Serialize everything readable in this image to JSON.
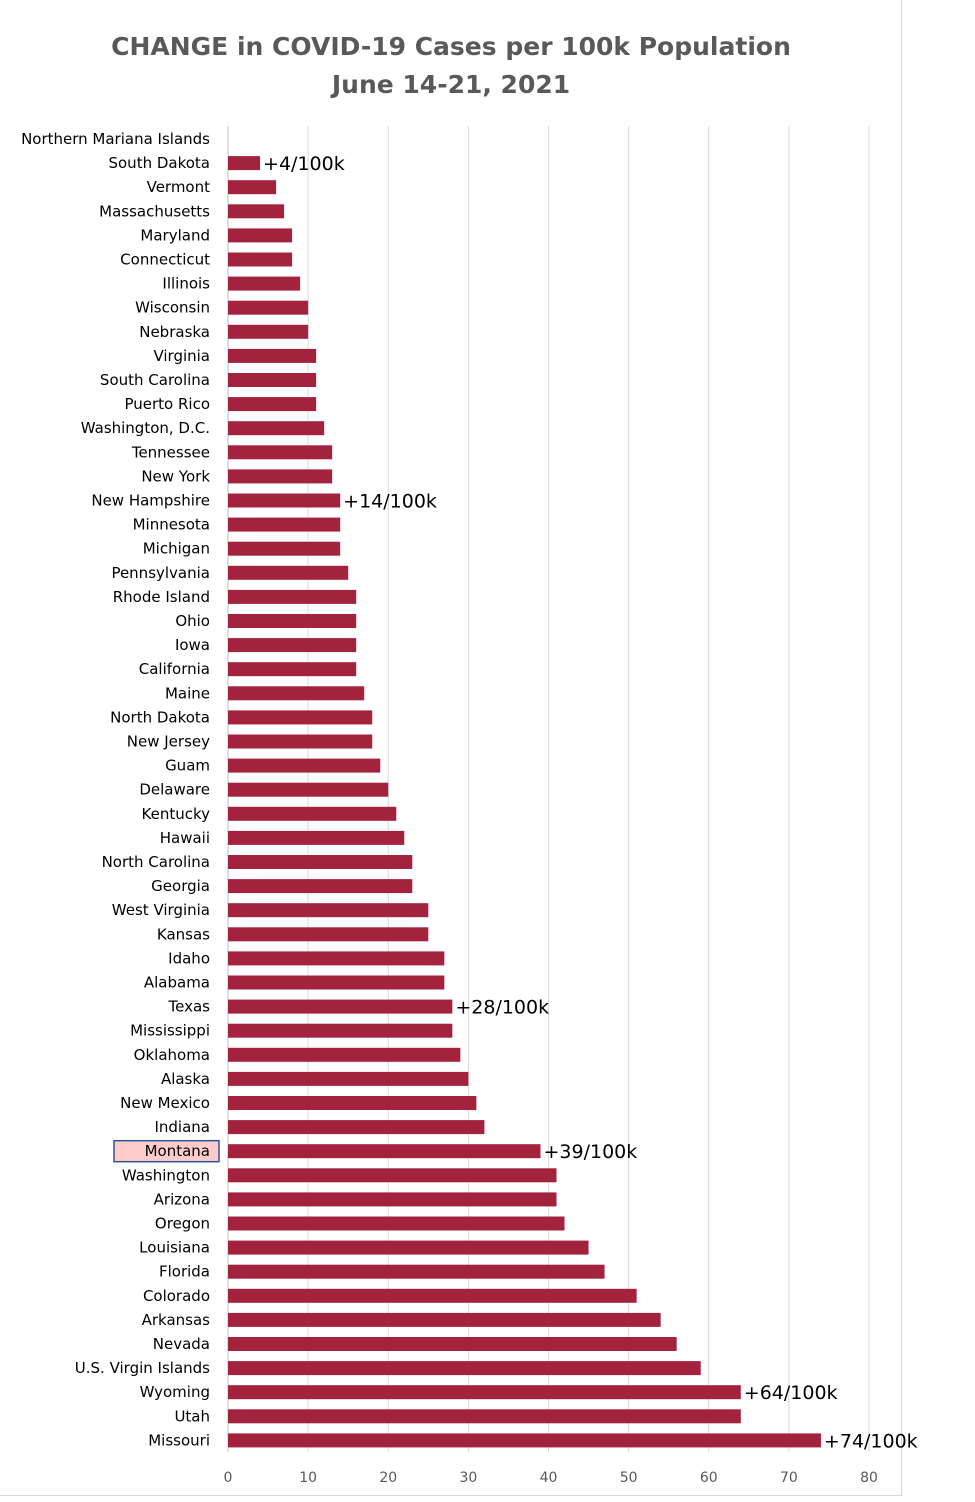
{
  "chart_data": {
    "type": "bar",
    "orientation": "horizontal",
    "title": "CHANGE in COVID-19 Cases per 100k Population",
    "subtitle": "June 14-21, 2021",
    "xlim": [
      0,
      80
    ],
    "xticks": [
      0,
      10,
      20,
      30,
      40,
      50,
      60,
      70,
      80
    ],
    "grid": true,
    "bar_color": "#a3233f",
    "highlight_category": "Montana",
    "highlight_fill": "#ffcccc",
    "highlight_border": "#2f5597",
    "categories": [
      "Northern Mariana Islands",
      "South Dakota",
      "Vermont",
      "Massachusetts",
      "Maryland",
      "Connecticut",
      "Illinois",
      "Wisconsin",
      "Nebraska",
      "Virginia",
      "South Carolina",
      "Puerto Rico",
      "Washington, D.C.",
      "Tennessee",
      "New York",
      "New Hampshire",
      "Minnesota",
      "Michigan",
      "Pennsylvania",
      "Rhode Island",
      "Ohio",
      "Iowa",
      "California",
      "Maine",
      "North Dakota",
      "New Jersey",
      "Guam",
      "Delaware",
      "Kentucky",
      "Hawaii",
      "North Carolina",
      "Georgia",
      "West Virginia",
      "Kansas",
      "Idaho",
      "Alabama",
      "Texas",
      "Mississippi",
      "Oklahoma",
      "Alaska",
      "New Mexico",
      "Indiana",
      "Montana",
      "Washington",
      "Arizona",
      "Oregon",
      "Louisiana",
      "Florida",
      "Colorado",
      "Arkansas",
      "Nevada",
      "U.S. Virgin Islands",
      "Wyoming",
      "Utah",
      "Missouri"
    ],
    "values": [
      0,
      4,
      6,
      7,
      8,
      8,
      9,
      10,
      10,
      11,
      11,
      11,
      12,
      13,
      13,
      14,
      14,
      14,
      15,
      16,
      16,
      16,
      16,
      17,
      18,
      18,
      19,
      20,
      21,
      22,
      23,
      23,
      25,
      25,
      27,
      27,
      28,
      28,
      29,
      30,
      31,
      32,
      39,
      41,
      41,
      42,
      45,
      47,
      51,
      54,
      56,
      59,
      64,
      64,
      74
    ],
    "annotations": [
      {
        "category": "South Dakota",
        "text": "+4/100k"
      },
      {
        "category": "New Hampshire",
        "text": "+14/100k"
      },
      {
        "category": "Texas",
        "text": "+28/100k"
      },
      {
        "category": "Montana",
        "text": "+39/100k"
      },
      {
        "category": "Wyoming",
        "text": "+64/100k"
      },
      {
        "category": "Missouri",
        "text": "+74/100k"
      }
    ]
  }
}
